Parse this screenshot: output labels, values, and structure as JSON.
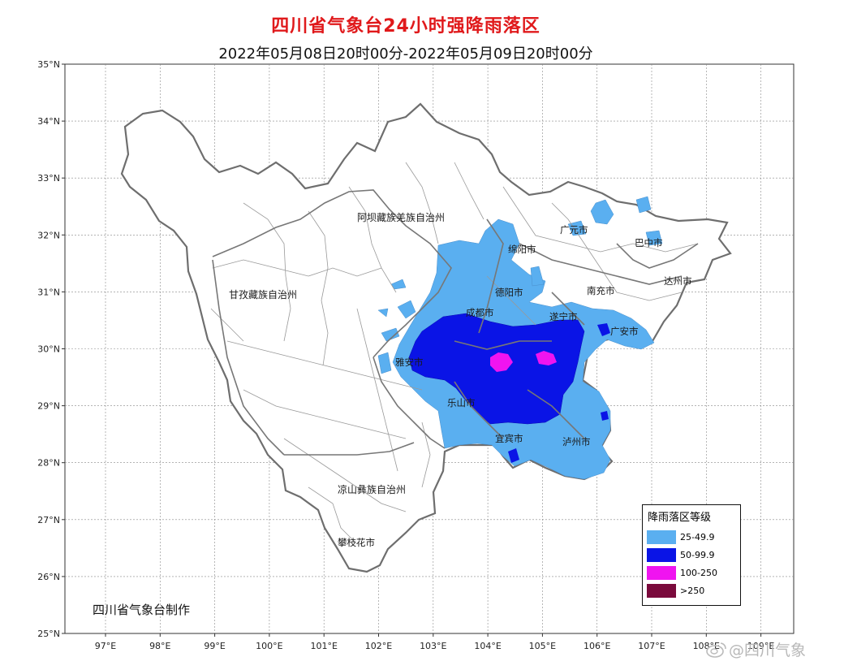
{
  "title": "四川省气象台24小时强降雨落区",
  "subtitle": "2022年05月08日20时00分-2022年05月09日20时00分",
  "lat_labels": [
    "25°N",
    "26°N",
    "27°N",
    "28°N",
    "29°N",
    "30°N",
    "31°N",
    "32°N",
    "33°N",
    "34°N",
    "35°N"
  ],
  "lon_labels": [
    "97°E",
    "98°E",
    "99°E",
    "100°E",
    "101°E",
    "102°E",
    "103°E",
    "104°E",
    "105°E",
    "106°E",
    "107°E",
    "108°E",
    "109°E"
  ],
  "prefectures": {
    "aba": "阿坝藏族羌族自治州",
    "ganzi": "甘孜藏族自治州",
    "liangshan": "凉山彝族自治州"
  },
  "cities": {
    "guangyuan": "广元市",
    "bazhong": "巴中市",
    "mianyang": "绵阳市",
    "dazhou": "达州市",
    "deyang": "德阳市",
    "nanchong": "南充市",
    "chengdu": "成都市",
    "suining": "遂宁市",
    "guangan": "广安市",
    "yaan": "雅安市",
    "leshan": "乐山市",
    "yibin": "宜宾市",
    "luzhou": "泸州市",
    "panzhihua": "攀枝花市"
  },
  "credit": "四川省气象台制作",
  "legend": {
    "title": "降雨落区等级",
    "items": [
      {
        "label": "25-49.9",
        "color": "#5aaff0"
      },
      {
        "label": "50-99.9",
        "color": "#0a14e6"
      },
      {
        "label": "100-250",
        "color": "#f014f0"
      },
      {
        "label": ">250",
        "color": "#7a0a3c"
      }
    ]
  },
  "watermark": "@四川气象"
}
